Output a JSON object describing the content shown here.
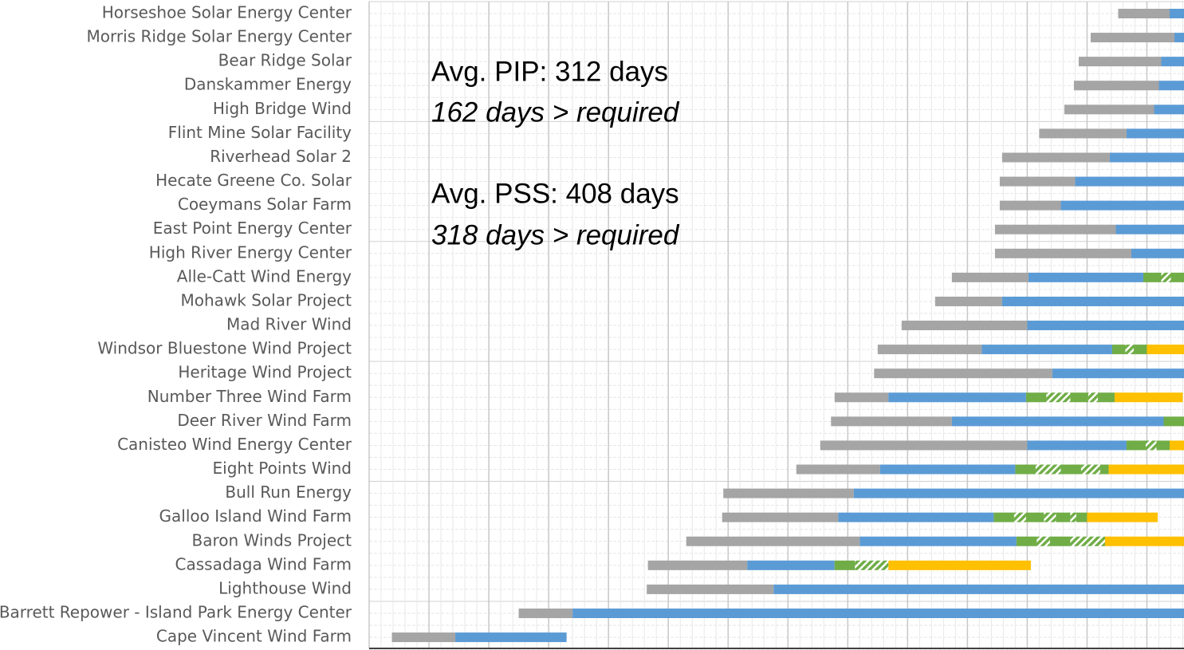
{
  "chart_data": {
    "type": "gantt",
    "categories": [
      "Horseshoe Solar Energy Center",
      "Morris Ridge Solar Energy Center",
      "Bear Ridge Solar",
      "Danskammer Energy",
      "High Bridge Wind",
      "Flint Mine Solar Facility",
      "Riverhead Solar 2",
      "Hecate Greene Co. Solar",
      "Coeymans Solar Farm",
      "East Point Energy Center",
      "High River Energy Center",
      "Alle-Catt Wind Energy",
      "Mohawk Solar Project",
      "Mad River Wind",
      "Windsor Bluestone Wind Project",
      "Heritage Wind Project",
      "Number Three Wind Farm",
      "Deer River Wind Farm",
      "Canisteo Wind Energy Center",
      "Eight Points Wind",
      "Bull Run Energy",
      "Galloo Island Wind Farm",
      "Baron Winds Project",
      "Cassadaga Wind Farm",
      "Lighthouse Wind",
      "Barrett Repower - Island Park Energy Center",
      "Cape Vincent Wind Farm"
    ],
    "bars": [
      {
        "start": 62.6,
        "segments": [
          {
            "color": "#a5a5a5",
            "value": 4.3
          },
          {
            "color": "#5b9bd5",
            "value": 1.3
          }
        ]
      },
      {
        "start": 60.3,
        "segments": [
          {
            "color": "#a5a5a5",
            "value": 7.0
          },
          {
            "color": "#5b9bd5",
            "value": 0.8
          }
        ]
      },
      {
        "start": 59.3,
        "segments": [
          {
            "color": "#a5a5a5",
            "value": 6.9
          },
          {
            "color": "#5b9bd5",
            "value": 1.9
          }
        ]
      },
      {
        "start": 58.9,
        "segments": [
          {
            "color": "#a5a5a5",
            "value": 7.1
          },
          {
            "color": "#5b9bd5",
            "value": 2.1
          }
        ]
      },
      {
        "start": 58.1,
        "segments": [
          {
            "color": "#a5a5a5",
            "value": 7.5
          },
          {
            "color": "#5b9bd5",
            "value": 2.5
          }
        ]
      },
      {
        "start": 56.0,
        "segments": [
          {
            "color": "#a5a5a5",
            "value": 7.3
          },
          {
            "color": "#5b9bd5",
            "value": 4.8
          }
        ]
      },
      {
        "start": 52.9,
        "segments": [
          {
            "color": "#a5a5a5",
            "value": 9.0
          },
          {
            "color": "#5b9bd5",
            "value": 6.2
          }
        ]
      },
      {
        "start": 52.7,
        "segments": [
          {
            "color": "#a5a5a5",
            "value": 6.3
          },
          {
            "color": "#5b9bd5",
            "value": 9.1
          }
        ]
      },
      {
        "start": 52.7,
        "segments": [
          {
            "color": "#a5a5a5",
            "value": 5.1
          },
          {
            "color": "#5b9bd5",
            "value": 10.3
          }
        ]
      },
      {
        "start": 52.3,
        "segments": [
          {
            "color": "#a5a5a5",
            "value": 10.1
          },
          {
            "color": "#5b9bd5",
            "value": 5.7
          }
        ]
      },
      {
        "start": 52.3,
        "segments": [
          {
            "color": "#a5a5a5",
            "value": 11.4
          },
          {
            "color": "#5b9bd5",
            "value": 4.5
          }
        ]
      },
      {
        "start": 48.7,
        "segments": [
          {
            "color": "#a5a5a5",
            "value": 6.4
          },
          {
            "color": "#5b9bd5",
            "value": 9.6
          },
          {
            "color": "#70ad47",
            "value": 1.5
          },
          {
            "color": "#70ad47",
            "hatch": true,
            "value": 0.8
          },
          {
            "color": "#70ad47",
            "value": 1.2
          }
        ]
      },
      {
        "start": 47.3,
        "segments": [
          {
            "color": "#a5a5a5",
            "value": 5.6
          },
          {
            "color": "#5b9bd5",
            "value": 15.2
          }
        ]
      },
      {
        "start": 44.5,
        "segments": [
          {
            "color": "#a5a5a5",
            "value": 10.5
          },
          {
            "color": "#5b9bd5",
            "value": 13.2
          }
        ]
      },
      {
        "start": 42.5,
        "segments": [
          {
            "color": "#a5a5a5",
            "value": 8.7
          },
          {
            "color": "#5b9bd5",
            "value": 10.9
          },
          {
            "color": "#70ad47",
            "value": 1.1
          },
          {
            "color": "#70ad47",
            "hatch": true,
            "value": 0.7
          },
          {
            "color": "#70ad47",
            "value": 1.1
          },
          {
            "color": "#ffc000",
            "value": 3.3
          }
        ]
      },
      {
        "start": 42.2,
        "segments": [
          {
            "color": "#a5a5a5",
            "value": 14.9
          },
          {
            "color": "#5b9bd5",
            "value": 11.1
          }
        ]
      },
      {
        "start": 38.9,
        "segments": [
          {
            "color": "#a5a5a5",
            "value": 4.5
          },
          {
            "color": "#5b9bd5",
            "value": 11.5
          },
          {
            "color": "#70ad47",
            "value": 1.7
          },
          {
            "color": "#70ad47",
            "hatch": true,
            "value": 2.0
          },
          {
            "color": "#70ad47",
            "value": 1.5
          },
          {
            "color": "#70ad47",
            "hatch": true,
            "value": 0.8
          },
          {
            "color": "#70ad47",
            "value": 1.4
          },
          {
            "color": "#ffc000",
            "value": 5.7
          }
        ]
      },
      {
        "start": 38.6,
        "segments": [
          {
            "color": "#a5a5a5",
            "value": 10.1
          },
          {
            "color": "#5b9bd5",
            "value": 17.7
          },
          {
            "color": "#70ad47",
            "value": 1.8
          }
        ]
      },
      {
        "start": 37.7,
        "segments": [
          {
            "color": "#a5a5a5",
            "value": 17.3
          },
          {
            "color": "#5b9bd5",
            "value": 8.3
          },
          {
            "color": "#70ad47",
            "value": 1.6
          },
          {
            "color": "#70ad47",
            "hatch": true,
            "value": 0.9
          },
          {
            "color": "#70ad47",
            "value": 1.1
          },
          {
            "color": "#ffc000",
            "value": 1.2
          }
        ]
      },
      {
        "start": 35.7,
        "segments": [
          {
            "color": "#a5a5a5",
            "value": 7.0
          },
          {
            "color": "#5b9bd5",
            "value": 11.3
          },
          {
            "color": "#70ad47",
            "value": 1.7
          },
          {
            "color": "#70ad47",
            "hatch": true,
            "value": 2.1
          },
          {
            "color": "#70ad47",
            "value": 1.7
          },
          {
            "color": "#70ad47",
            "hatch": true,
            "value": 1.6
          },
          {
            "color": "#70ad47",
            "value": 0.7
          },
          {
            "color": "#ffc000",
            "value": 6.3
          }
        ]
      },
      {
        "start": 29.6,
        "segments": [
          {
            "color": "#a5a5a5",
            "value": 10.9
          },
          {
            "color": "#5b9bd5",
            "value": 27.6
          }
        ]
      },
      {
        "start": 29.5,
        "segments": [
          {
            "color": "#a5a5a5",
            "value": 9.7
          },
          {
            "color": "#5b9bd5",
            "value": 13.0
          },
          {
            "color": "#70ad47",
            "value": 1.7
          },
          {
            "color": "#70ad47",
            "hatch": true,
            "value": 1.0
          },
          {
            "color": "#70ad47",
            "value": 1.5
          },
          {
            "color": "#70ad47",
            "hatch": true,
            "value": 1.0
          },
          {
            "color": "#70ad47",
            "value": 1.2
          },
          {
            "color": "#70ad47",
            "hatch": true,
            "value": 0.5
          },
          {
            "color": "#70ad47",
            "value": 0.9
          },
          {
            "color": "#ffc000",
            "value": 5.9
          }
        ]
      },
      {
        "start": 26.5,
        "segments": [
          {
            "color": "#a5a5a5",
            "value": 14.5
          },
          {
            "color": "#5b9bd5",
            "value": 13.1
          },
          {
            "color": "#70ad47",
            "value": 1.7
          },
          {
            "color": "#70ad47",
            "hatch": true,
            "value": 1.1
          },
          {
            "color": "#70ad47",
            "value": 1.7
          },
          {
            "color": "#70ad47",
            "hatch": true,
            "value": 2.9
          },
          {
            "color": "#ffc000",
            "value": 6.7
          }
        ]
      },
      {
        "start": 23.3,
        "segments": [
          {
            "color": "#a5a5a5",
            "value": 8.3
          },
          {
            "color": "#5b9bd5",
            "value": 7.3
          },
          {
            "color": "#70ad47",
            "value": 1.7
          },
          {
            "color": "#70ad47",
            "hatch": true,
            "value": 2.8
          },
          {
            "color": "#ffc000",
            "value": 11.9
          }
        ]
      },
      {
        "start": 23.2,
        "segments": [
          {
            "color": "#a5a5a5",
            "value": 10.6
          },
          {
            "color": "#5b9bd5",
            "value": 34.3
          }
        ]
      },
      {
        "start": 12.5,
        "segments": [
          {
            "color": "#a5a5a5",
            "value": 4.5
          },
          {
            "color": "#5b9bd5",
            "value": 51.2
          }
        ]
      },
      {
        "start": 1.9,
        "segments": [
          {
            "color": "#a5a5a5",
            "value": 5.3
          },
          {
            "color": "#5b9bd5",
            "value": 9.3
          }
        ]
      }
    ],
    "annotations": [
      "Avg. PIP: 312 days",
      "162 days > required",
      "Avg. PSS: 408 days",
      "318 days > required"
    ],
    "xlim": [
      0,
      68.1
    ],
    "xticks": [
      0,
      5,
      10,
      15,
      20,
      25,
      30,
      35,
      40,
      45,
      50,
      55,
      60,
      65
    ],
    "xticks_minor": [
      0,
      1,
      2,
      3,
      4,
      5,
      6,
      7,
      8,
      9,
      10,
      11,
      12,
      13,
      14,
      15,
      16,
      17,
      18,
      19,
      20,
      21,
      22,
      23,
      24,
      25,
      26,
      27,
      28,
      29,
      30,
      31,
      32,
      33,
      34,
      35,
      36,
      37,
      38,
      39,
      40,
      41,
      42,
      43,
      44,
      45,
      46,
      47,
      48,
      49,
      50,
      51,
      52,
      53,
      54,
      55,
      56,
      57,
      58,
      59,
      60,
      61,
      62,
      63,
      64,
      65,
      66,
      67,
      68
    ],
    "grid": true
  }
}
